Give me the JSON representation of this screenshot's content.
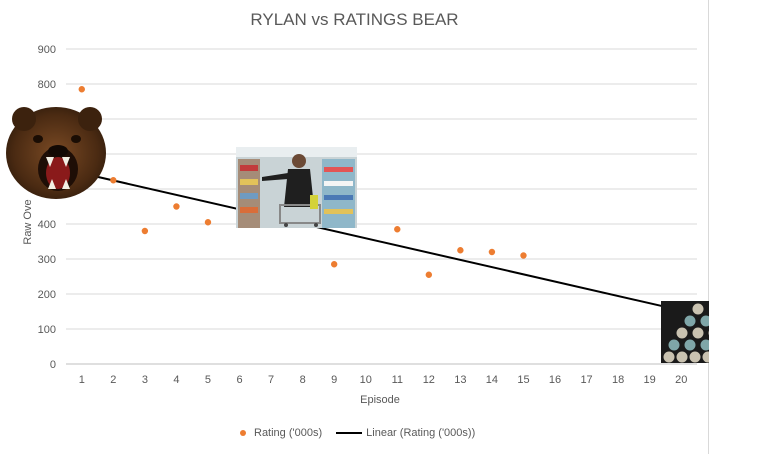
{
  "chart_data": {
    "type": "scatter",
    "title": "RYLAN vs RATINGS BEAR",
    "xlabel": "Episode",
    "ylabel": "Raw Ove",
    "ylim": [
      0,
      900
    ],
    "y_ticks": [
      "0",
      "100",
      "200",
      "300",
      "400",
      "500",
      "600",
      "700",
      "800",
      "900"
    ],
    "categories": [
      "1",
      "2",
      "3",
      "4",
      "5",
      "6",
      "7",
      "8",
      "9",
      "10",
      "11",
      "12",
      "13",
      "14",
      "15",
      "16",
      "17",
      "18",
      "19",
      "20"
    ],
    "grid": true,
    "legend_position": "bottom",
    "series": [
      {
        "name": "Rating ('000s)",
        "color": "#ED7D31",
        "points": [
          {
            "x": 1,
            "y": 785
          },
          {
            "x": 2,
            "y": 525
          },
          {
            "x": 3,
            "y": 380
          },
          {
            "x": 4,
            "y": 450
          },
          {
            "x": 5,
            "y": 405
          },
          {
            "x": 9,
            "y": 285
          },
          {
            "x": 11,
            "y": 385
          },
          {
            "x": 12,
            "y": 255
          },
          {
            "x": 13,
            "y": 325
          },
          {
            "x": 14,
            "y": 320
          },
          {
            "x": 15,
            "y": 310
          }
        ]
      }
    ],
    "trendline": {
      "name": "Linear (Rating ('000s))",
      "color": "#000000",
      "start": {
        "x": 1,
        "y": 545
      },
      "end": {
        "x": 20,
        "y": 153
      }
    },
    "images": [
      {
        "name": "bear-image",
        "description": "roaring bear"
      },
      {
        "name": "store-image",
        "description": "man with shopping cart in store"
      },
      {
        "name": "crowd-image",
        "description": "crowd of bobbleheads"
      }
    ]
  }
}
